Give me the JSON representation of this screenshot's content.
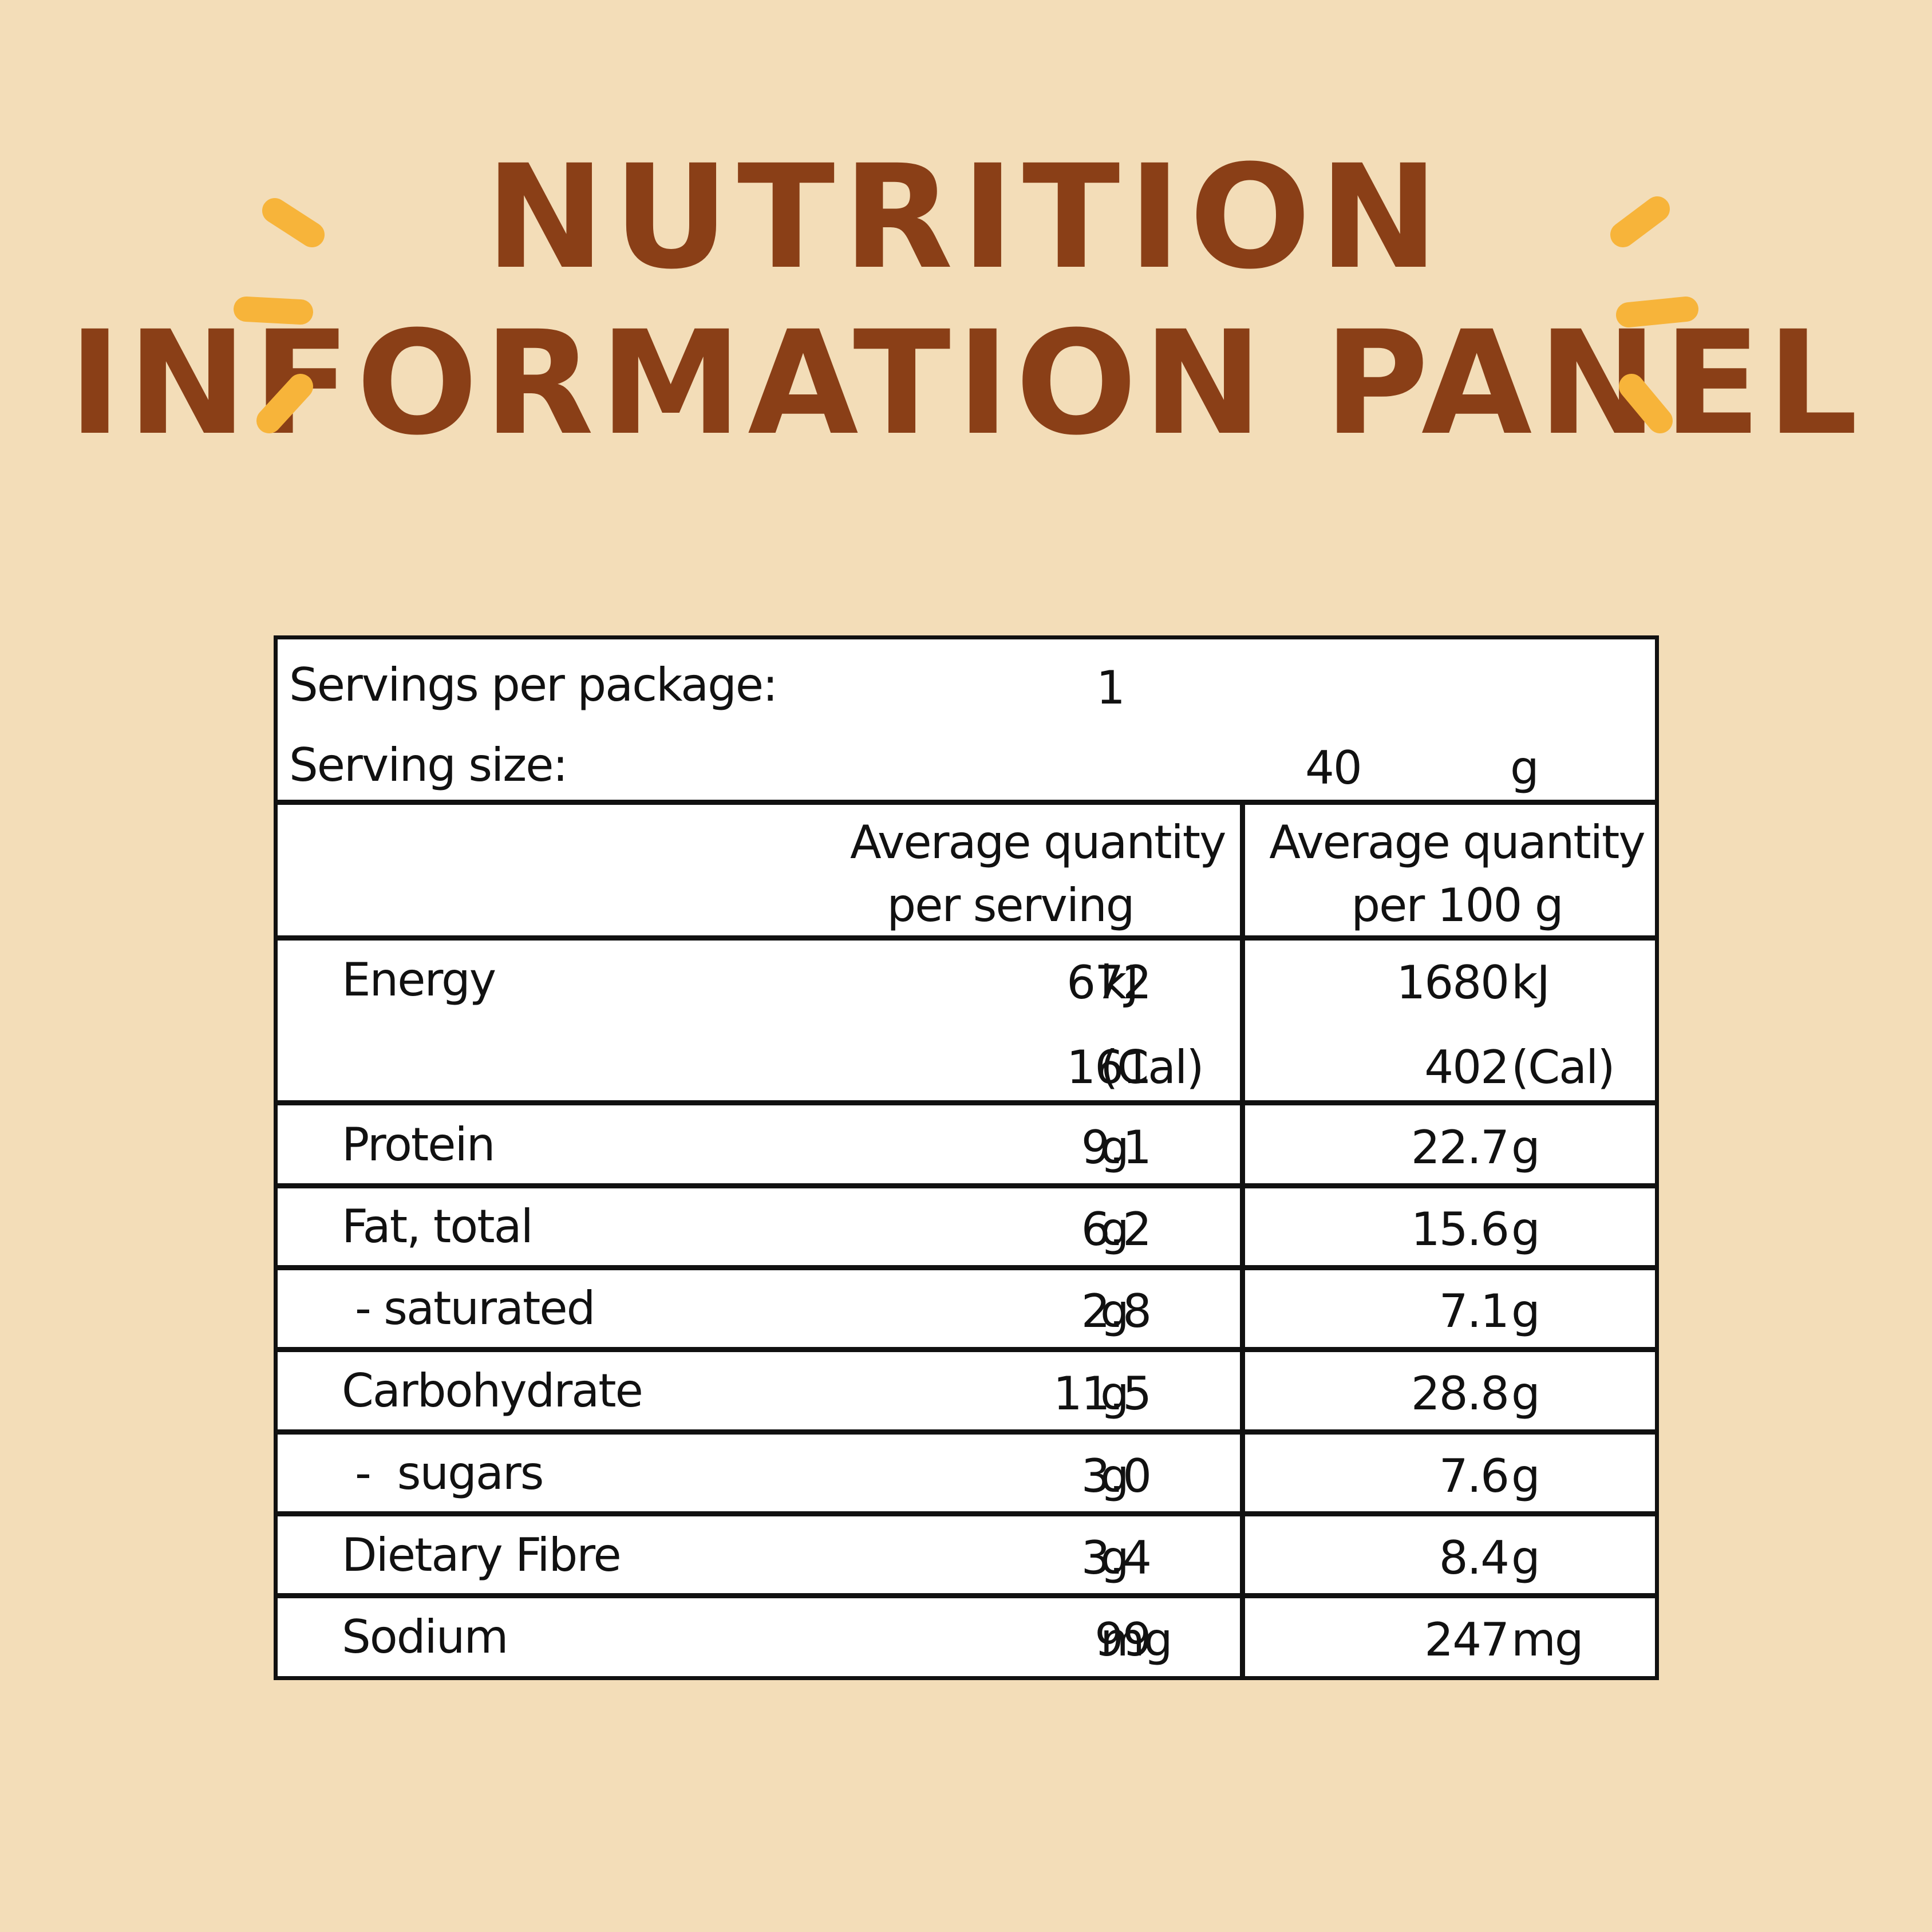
{
  "title": {
    "line1": "NUTRITION",
    "line2": "INFORMATION PANEL"
  },
  "colors": {
    "background": "#f3ddb8",
    "title": "#8a3f17",
    "accent": "#f7b43a",
    "panel_border": "#111111"
  },
  "panel": {
    "servings_per_package_label": "Servings per package:",
    "servings_per_package_value": "1",
    "serving_size_label": "Serving size:",
    "serving_size_value": "40",
    "serving_size_unit": "g",
    "col_serving_header_1": "Average quantity",
    "col_serving_header_2": "per serving",
    "col_100g_header_1": "Average quantity",
    "col_100g_header_2": "per 100 g",
    "rows": [
      {
        "label": "Energy",
        "serving": "672",
        "serving_unit": "kJ",
        "per100": "1680",
        "per100_unit": "kJ"
      },
      {
        "label": "",
        "serving": "161",
        "serving_unit": "(Cal)",
        "per100": "402",
        "per100_unit": "(Cal)"
      },
      {
        "label": "Protein",
        "serving": "9.1",
        "serving_unit": "g",
        "per100": "22.7",
        "per100_unit": "g"
      },
      {
        "label": "Fat, total",
        "serving": "6.2",
        "serving_unit": "g",
        "per100": "15.6",
        "per100_unit": "g"
      },
      {
        "label": "- saturated",
        "serving": "2.8",
        "serving_unit": "g",
        "per100": "7.1",
        "per100_unit": "g"
      },
      {
        "label": "Carbohydrate",
        "serving": "11.5",
        "serving_unit": "g",
        "per100": "28.8",
        "per100_unit": "g"
      },
      {
        "label": "-  sugars",
        "serving": "3.0",
        "serving_unit": "g",
        "per100": "7.6",
        "per100_unit": "g"
      },
      {
        "label": "Dietary Fibre",
        "serving": "3.4",
        "serving_unit": "g",
        "per100": "8.4",
        "per100_unit": "g"
      },
      {
        "label": "Sodium",
        "serving": "99",
        "serving_unit": "mg",
        "per100": "247",
        "per100_unit": "mg"
      }
    ]
  }
}
